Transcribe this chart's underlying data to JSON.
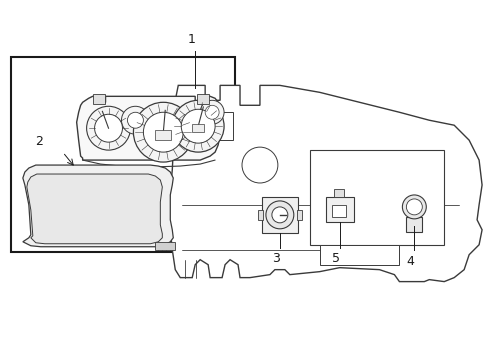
{
  "background_color": "#ffffff",
  "line_color": "#3a3a3a",
  "line_width": 1.0,
  "label_fontsize": 8,
  "fig_width": 4.89,
  "fig_height": 3.6,
  "dpi": 100
}
